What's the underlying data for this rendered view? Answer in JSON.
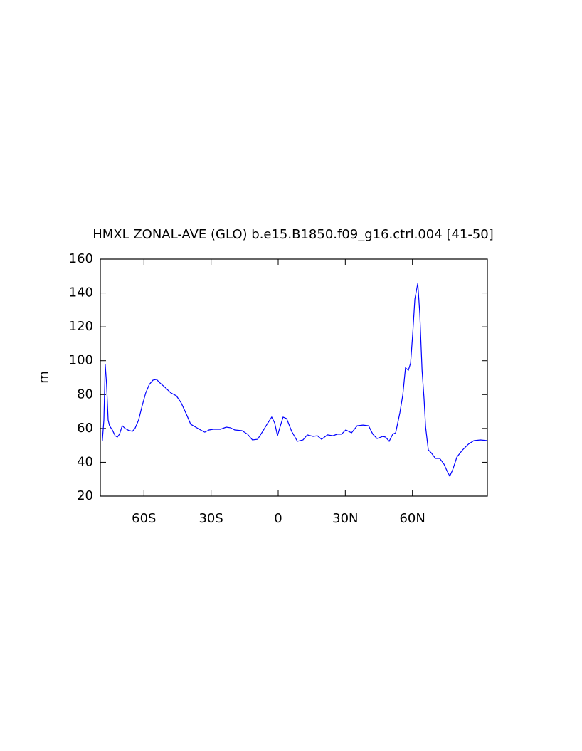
{
  "chart_data": {
    "type": "line",
    "title": "HMXL ZONAL-AVE (GLO) b.e15.B1850.f09_g16.ctrl.004 [41-50]",
    "y_label": "m",
    "x": [
      -78.6,
      -77.9,
      -77.3,
      -76.7,
      -76,
      -75.4,
      -74.1,
      -72.9,
      -71.9,
      -70.9,
      -69.7,
      -68.4,
      -67.1,
      -65.2,
      -64,
      -62.4,
      -60.8,
      -59.2,
      -57.6,
      -56,
      -54.4,
      -52.8,
      -50.6,
      -48,
      -45.5,
      -43.3,
      -41,
      -39.1,
      -36.9,
      -34.7,
      -32.8,
      -30.9,
      -29,
      -25.8,
      -23.2,
      -21.3,
      -19.4,
      -16.2,
      -13.7,
      -11.5,
      -9.2,
      -6.7,
      -4.8,
      -2.9,
      -1.6,
      -0.3,
      1,
      2.2,
      3.8,
      6,
      8.6,
      11.1,
      13,
      15.6,
      17.5,
      19.4,
      22,
      24.5,
      26.4,
      28.3,
      30.2,
      32.8,
      35.3,
      37.9,
      40.4,
      42.3,
      44.2,
      46.8,
      48,
      49.6,
      51.2,
      52.5,
      54.4,
      55.7,
      56.9,
      58.2,
      59.2,
      60.1,
      61.1,
      62.4,
      63.3,
      64.3,
      65.2,
      65.9,
      67.1,
      68.4,
      70.3,
      72.2,
      74.1,
      75.4,
      76.7,
      78,
      79.9,
      82.4,
      85,
      87.5,
      90.4,
      93.5
    ],
    "series": [
      {
        "name": "HMXL",
        "color": "#0000ff",
        "values": [
          52.4,
          65,
          97.8,
          86,
          65,
          61.6,
          59,
          55.7,
          54.9,
          56.6,
          61.6,
          60,
          59,
          58.3,
          60,
          65,
          73.4,
          81,
          86,
          88.5,
          89,
          86.8,
          84.3,
          81,
          79.3,
          75,
          68.3,
          62.5,
          60.8,
          59.1,
          57.8,
          59.1,
          59.5,
          59.5,
          60.8,
          60.4,
          59.1,
          58.7,
          56.6,
          53.2,
          53.6,
          58.7,
          62.9,
          66.7,
          63.3,
          55.7,
          61.6,
          66.7,
          65.8,
          58.3,
          52.4,
          53.2,
          56.2,
          55.3,
          55.7,
          53.6,
          56.2,
          55.7,
          56.6,
          56.6,
          59.1,
          57.4,
          61.6,
          62,
          61.6,
          56.6,
          54,
          55.3,
          54.9,
          52.4,
          56.6,
          57.4,
          69.2,
          79.7,
          95.7,
          94.4,
          98.6,
          115.4,
          136.4,
          145.7,
          128,
          94.4,
          77.6,
          60.8,
          47.3,
          45.6,
          42.3,
          42.3,
          38.9,
          35.1,
          31.8,
          35.6,
          43.1,
          47.3,
          50.7,
          52.8,
          53.2,
          52.8
        ]
      }
    ],
    "xlim": [
      -79.5,
      93.5
    ],
    "xticks": [
      {
        "value": -60,
        "label": "60S"
      },
      {
        "value": -30,
        "label": "30S"
      },
      0,
      {
        "value": 30,
        "label": "30N"
      },
      {
        "value": 60,
        "label": "60N"
      }
    ],
    "ylim": [
      20,
      160
    ],
    "yticks": [
      20,
      40,
      60,
      80,
      100,
      120,
      140,
      160
    ]
  }
}
